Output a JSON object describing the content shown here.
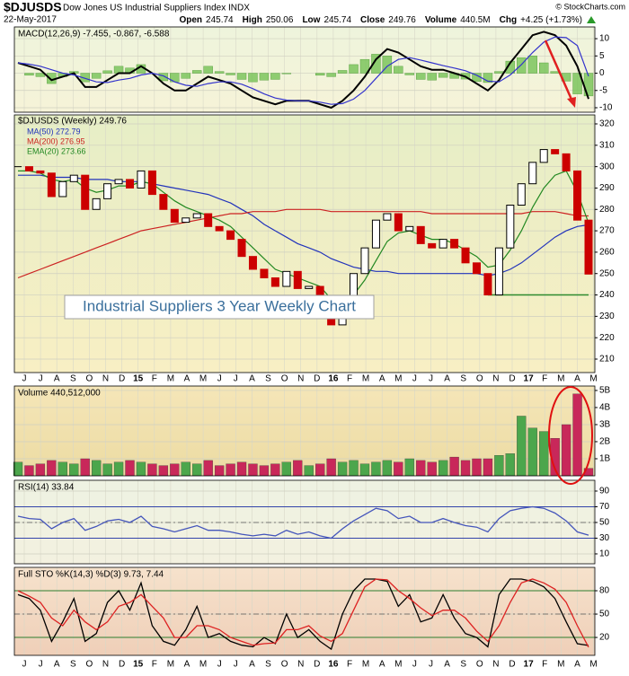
{
  "header": {
    "symbol": "$DJUSDS",
    "name": "Dow Jones US Industrial Suppliers Index INDX",
    "credit": "© StockCharts.com",
    "date": "22-May-2017",
    "quote": [
      {
        "label": "Open",
        "value": "245.74"
      },
      {
        "label": "High",
        "value": "250.06"
      },
      {
        "label": "Low",
        "value": "245.74"
      },
      {
        "label": "Close",
        "value": "249.76"
      },
      {
        "label": "Volume",
        "value": "440.5M"
      },
      {
        "label": "Chg",
        "value": "+4.25 (+1.73%)"
      }
    ]
  },
  "annotation": "Industrial Suppliers 3 Year Weekly Chart",
  "x_labels": [
    "J",
    "J",
    "A",
    "S",
    "O",
    "N",
    "D",
    "15",
    "F",
    "M",
    "A",
    "M",
    "J",
    "J",
    "A",
    "S",
    "O",
    "N",
    "D",
    "16",
    "F",
    "M",
    "A",
    "M",
    "J",
    "J",
    "A",
    "S",
    "O",
    "N",
    "D",
    "17",
    "F",
    "M",
    "A",
    "M"
  ],
  "chart_data": [
    {
      "type": "macd",
      "legend": "MACD(12,26,9) -7.455, -0.867, -6.588",
      "ylim": [
        -11.3,
        13.4
      ],
      "yticks": [
        10,
        5,
        0,
        -5,
        -10
      ],
      "series": [
        {
          "color": "#000000",
          "values": [
            3,
            2,
            1,
            -2,
            -1,
            0,
            -4,
            -4,
            -2,
            0,
            0,
            2,
            0,
            -3,
            -5,
            -5,
            -3,
            -1,
            -2,
            -3,
            -5,
            -7,
            -8,
            -9,
            -8,
            -8,
            -8,
            -9,
            -10,
            -8,
            -5,
            -1,
            4,
            7,
            6,
            4,
            2,
            1,
            1,
            0,
            -1,
            -3,
            -5,
            -2,
            3,
            7,
            11,
            12,
            11,
            8,
            2,
            -7.455
          ]
        },
        {
          "color": "#3333cc",
          "values": [
            3,
            2.6,
            2,
            1,
            0,
            -0.5,
            -1.5,
            -2.5,
            -2.7,
            -2,
            -1.5,
            -0.5,
            0,
            -0.8,
            -2.5,
            -3.5,
            -3.8,
            -3,
            -2.5,
            -2.5,
            -3.2,
            -4.5,
            -6,
            -7.2,
            -7.8,
            -8,
            -8,
            -8.4,
            -9,
            -8.8,
            -7.5,
            -5,
            -1.5,
            2,
            4,
            4.5,
            3.8,
            3,
            2.2,
            1.5,
            0.7,
            -0.6,
            -2.3,
            -2.5,
            -0.5,
            2.5,
            6,
            9,
            10.5,
            10.3,
            8,
            -0.867
          ]
        }
      ],
      "histogram": {
        "color": "#6cbf4c",
        "values": [
          0,
          -0.6,
          -1,
          -3,
          -1,
          0.5,
          -2.5,
          -1.5,
          0.7,
          2,
          1.5,
          2.5,
          0,
          -2.2,
          -2.5,
          -1.5,
          0.8,
          2,
          0.5,
          -0.5,
          -1.8,
          -2.5,
          -2,
          -1.8,
          -0.2,
          0,
          0,
          -0.6,
          -1,
          0.8,
          2.5,
          4,
          5.5,
          5,
          2,
          -0.5,
          -1.8,
          -2,
          -1.2,
          -1.5,
          -1.7,
          -2.4,
          -2.7,
          0.5,
          3.5,
          4.5,
          5,
          3,
          0.5,
          -2.3,
          -6,
          -6.588
        ]
      }
    },
    {
      "type": "candlestick",
      "ylim": [
        203.7,
        324.2
      ],
      "yticks": [
        210,
        220,
        230,
        240,
        250,
        260,
        270,
        280,
        290,
        300,
        310,
        320
      ],
      "grid": true,
      "up_color": "#000000",
      "down_color": "#cc0000",
      "support_level": 240,
      "support_color": "#2e8b2e",
      "closes": {
        "name": "$DJUSDS (Weekly) 249.76",
        "color": "#000000",
        "values": [
          300,
          298,
          297,
          286,
          293,
          296,
          280,
          285,
          292,
          294,
          290,
          298,
          287,
          280,
          274,
          276,
          278,
          272,
          270,
          266,
          258,
          252,
          248,
          244,
          251,
          243,
          244,
          236,
          226,
          238,
          250,
          262,
          275,
          278,
          270,
          272,
          264,
          262,
          266,
          262,
          255,
          250,
          240,
          262,
          282,
          292,
          302,
          308,
          306,
          298,
          275,
          249.76
        ]
      },
      "series": [
        {
          "name": "MA(50) 272.79",
          "color": "#2233bb",
          "values": [
            296,
            296,
            296,
            295,
            295,
            295,
            294,
            294,
            294,
            293,
            293,
            293,
            292,
            291,
            290,
            289,
            288,
            287,
            285,
            283,
            280,
            277,
            273,
            270,
            267,
            264,
            262,
            260,
            257,
            255,
            253,
            252,
            251,
            251,
            250,
            250,
            250,
            250,
            250,
            250,
            250,
            250,
            249,
            250,
            252,
            255,
            259,
            263,
            267,
            270,
            272,
            272.79
          ]
        },
        {
          "name": "MA(200) 276.95",
          "color": "#cc2222",
          "values": [
            248,
            250,
            252,
            254,
            256,
            258,
            260,
            262,
            264,
            266,
            268,
            270,
            271,
            272,
            273,
            274,
            275,
            276,
            277,
            278,
            278,
            279,
            279,
            279,
            280,
            280,
            280,
            280,
            279,
            279,
            279,
            279,
            279,
            279,
            279,
            279,
            279,
            278,
            278,
            278,
            278,
            278,
            278,
            278,
            278,
            278,
            279,
            279,
            279,
            278,
            277,
            276.95
          ]
        },
        {
          "name": "EMA(20) 273.66",
          "color": "#228822",
          "values": [
            298,
            298,
            297,
            294,
            293,
            294,
            290,
            288,
            289,
            291,
            291,
            293,
            292,
            288,
            284,
            281,
            279,
            277,
            275,
            272,
            267,
            262,
            257,
            252,
            250,
            248,
            246,
            244,
            238,
            237,
            240,
            247,
            256,
            265,
            269,
            270,
            268,
            266,
            266,
            264,
            261,
            258,
            253,
            254,
            261,
            270,
            281,
            290,
            296,
            298,
            288,
            273.66
          ]
        }
      ]
    },
    {
      "type": "bar",
      "legend": "Volume 440,512,000",
      "ylim": [
        0,
        5.26
      ],
      "yticks": [
        {
          "value": 5,
          "label": "5B"
        },
        {
          "value": 4,
          "label": "4B"
        },
        {
          "value": 3,
          "label": "3B"
        },
        {
          "value": 2,
          "label": "2B"
        },
        {
          "value": 1,
          "label": "1B"
        }
      ],
      "up_color": "#4ca64c",
      "down_color": "#c8285a",
      "values": [
        0.8,
        0.6,
        0.7,
        0.9,
        0.8,
        0.7,
        1.0,
        0.9,
        0.7,
        0.8,
        0.9,
        0.8,
        0.7,
        0.6,
        0.7,
        0.8,
        0.7,
        0.9,
        0.6,
        0.7,
        0.8,
        0.7,
        0.6,
        0.7,
        0.8,
        0.9,
        0.6,
        0.7,
        1.0,
        0.8,
        0.9,
        0.7,
        0.8,
        0.9,
        0.8,
        1.0,
        0.9,
        0.8,
        0.9,
        1.1,
        0.9,
        1.0,
        1.0,
        1.2,
        1.3,
        3.5,
        2.8,
        2.6,
        2.2,
        3.0,
        4.8,
        0.44
      ]
    },
    {
      "type": "line",
      "legend": "RSI(14) 33.84",
      "ylim": [
        -2.6,
        103.7
      ],
      "yticks": [
        90,
        70,
        50,
        30,
        10
      ],
      "reference_lines": [
        70,
        30
      ],
      "reference_color": "#3344aa",
      "mid_line": 50,
      "series": [
        {
          "color": "#4455bb",
          "values": [
            58,
            55,
            54,
            42,
            50,
            55,
            40,
            45,
            52,
            54,
            50,
            58,
            45,
            42,
            38,
            42,
            46,
            40,
            40,
            38,
            35,
            33,
            35,
            33,
            40,
            35,
            38,
            33,
            30,
            42,
            52,
            60,
            68,
            65,
            55,
            58,
            50,
            50,
            55,
            50,
            46,
            44,
            38,
            55,
            65,
            68,
            70,
            68,
            62,
            52,
            38,
            33.84
          ]
        }
      ]
    },
    {
      "type": "line",
      "legend": "Full STO %K(14,3) %D(3) 9.73, 7.44",
      "ylim": [
        -3,
        110
      ],
      "yticks": [
        80,
        50,
        20
      ],
      "reference_lines": [
        80,
        20
      ],
      "reference_color": "#2e7d2e",
      "mid_line": 50,
      "series": [
        {
          "color": "#000000",
          "values": [
            75,
            70,
            55,
            15,
            40,
            70,
            15,
            25,
            65,
            80,
            55,
            90,
            35,
            15,
            10,
            30,
            60,
            20,
            25,
            15,
            10,
            8,
            20,
            12,
            50,
            20,
            30,
            15,
            5,
            50,
            80,
            95,
            95,
            92,
            60,
            75,
            40,
            45,
            75,
            45,
            25,
            20,
            8,
            75,
            95,
            95,
            92,
            85,
            70,
            40,
            12,
            9.73
          ]
        },
        {
          "color": "#dd2222",
          "values": [
            80,
            73,
            65,
            45,
            35,
            55,
            40,
            30,
            40,
            60,
            65,
            75,
            60,
            45,
            20,
            20,
            35,
            35,
            30,
            20,
            15,
            10,
            12,
            13,
            30,
            30,
            35,
            22,
            15,
            25,
            55,
            85,
            95,
            94,
            80,
            70,
            58,
            48,
            55,
            55,
            45,
            28,
            15,
            35,
            65,
            90,
            95,
            90,
            82,
            65,
            35,
            7.44
          ]
        }
      ]
    }
  ]
}
